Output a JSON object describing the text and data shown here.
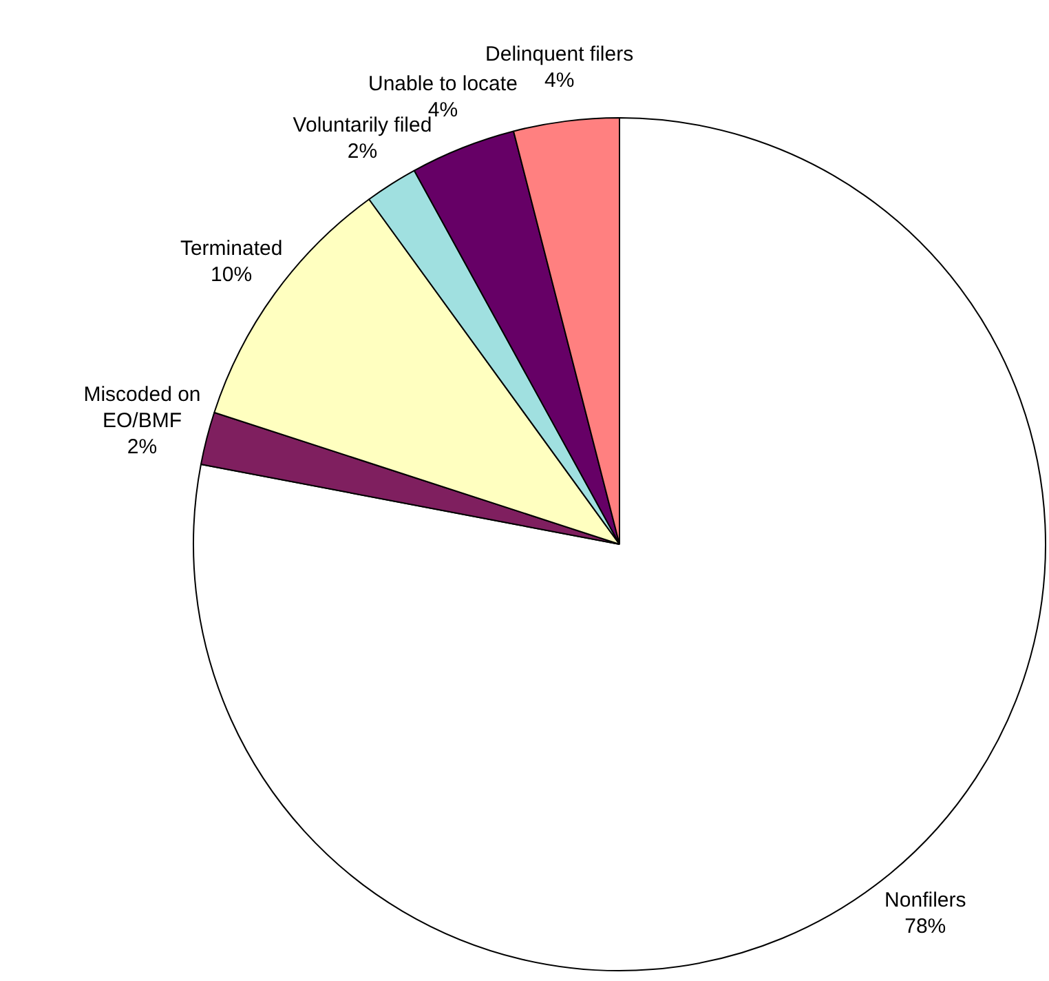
{
  "chart_data": {
    "type": "pie",
    "categories": [
      "Nonfilers",
      "Miscoded on EO/BMF",
      "Terminated",
      "Voluntarily filed",
      "Unable to locate",
      "Delinquent filers"
    ],
    "values": [
      78,
      2,
      10,
      2,
      4,
      4
    ],
    "value_labels": [
      "78%",
      "2%",
      "10%",
      "2%",
      "4%",
      "4%"
    ],
    "colors": [
      "#ffffff",
      "#7f1f5f",
      "#ffffc0",
      "#a0e0e0",
      "#660066",
      "#ff8080"
    ],
    "legend": false
  }
}
